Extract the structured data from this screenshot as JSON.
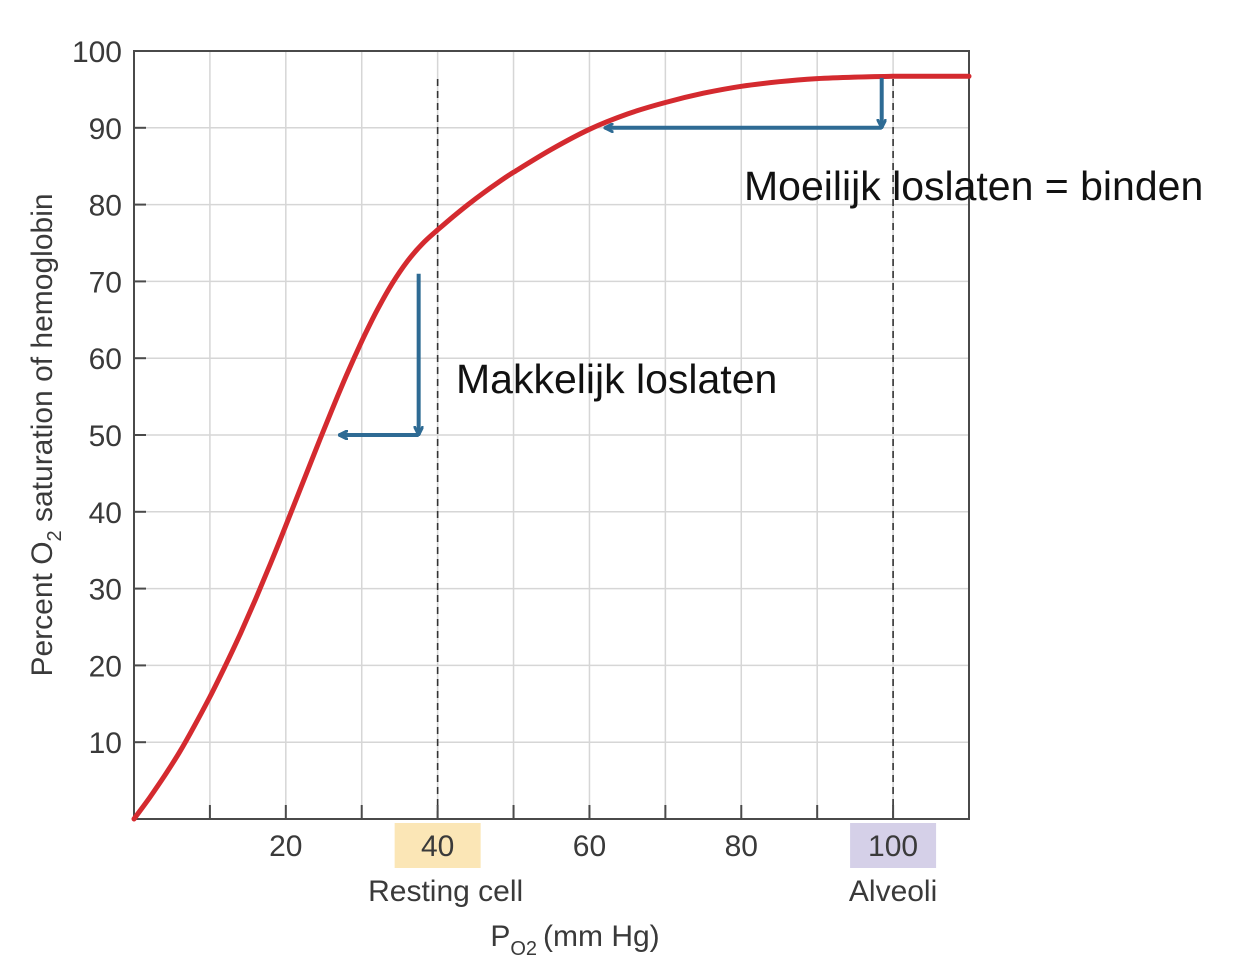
{
  "chart_data": {
    "type": "line",
    "title": "",
    "xlabel": "P",
    "xlabel_subscript": "O2",
    "xlabel_unit": "(mm Hg)",
    "ylabel_prefix": "Percent O",
    "ylabel_subscript": "2",
    "ylabel_suffix": " saturation of hemoglobin",
    "xlim": [
      0,
      110
    ],
    "ylim": [
      0,
      100
    ],
    "x_ticks": [
      20,
      40,
      60,
      80,
      100
    ],
    "x_tick_labels": [
      "20",
      "40",
      "60",
      "80",
      "100"
    ],
    "y_ticks": [
      10,
      20,
      30,
      40,
      50,
      60,
      70,
      80,
      90,
      100
    ],
    "y_tick_labels": [
      "10",
      "20",
      "30",
      "40",
      "50",
      "60",
      "70",
      "80",
      "90",
      "100"
    ],
    "grid": true,
    "highlighted_ticks": [
      {
        "x": 40,
        "label": "40",
        "caption": "Resting cell",
        "color": "#fbe6b6"
      },
      {
        "x": 100,
        "label": "100",
        "caption": "Alveoli",
        "color": "#d5d0e8"
      }
    ],
    "reference_lines_x": [
      40,
      100
    ],
    "series": [
      {
        "color": "#d42a2f",
        "x": [
          0,
          2,
          4,
          6,
          8,
          10,
          12,
          14,
          16,
          18,
          20,
          22,
          24,
          26,
          28,
          30,
          32,
          34,
          36,
          38,
          40,
          42,
          44,
          46,
          48,
          50,
          55,
          60,
          65,
          70,
          75,
          80,
          85,
          90,
          95,
          100,
          105,
          110
        ],
        "values": [
          0,
          2.7,
          5.6,
          8.7,
          12.2,
          15.9,
          19.9,
          24.1,
          28.6,
          33.3,
          38.2,
          43.2,
          48.2,
          53.1,
          57.8,
          62.2,
          66.2,
          69.7,
          72.6,
          74.9,
          76.7,
          78.4,
          80.0,
          81.5,
          82.9,
          84.2,
          87.2,
          89.8,
          91.8,
          93.3,
          94.5,
          95.4,
          96.0,
          96.4,
          96.6,
          96.7,
          96.7,
          96.7
        ]
      }
    ],
    "annotations": [
      {
        "text": "Makkelijk loslaten"
      },
      {
        "text": "Moeilijk loslaten = binden"
      }
    ],
    "arrow_color": "#2e6b94",
    "arrows": [
      {
        "from": [
          37.5,
          71
        ],
        "to": [
          37.5,
          50
        ]
      },
      {
        "from": [
          37.5,
          50
        ],
        "to": [
          27,
          50
        ]
      },
      {
        "from": [
          98.5,
          96.5
        ],
        "to": [
          98.5,
          90
        ]
      },
      {
        "from": [
          98.5,
          90
        ],
        "to": [
          62,
          90
        ]
      }
    ]
  }
}
